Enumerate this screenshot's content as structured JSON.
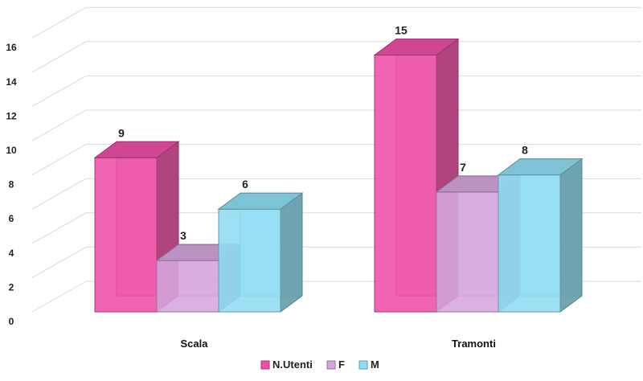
{
  "chart_data": {
    "type": "bar",
    "categories": [
      "Scala",
      "Tramonti"
    ],
    "series": [
      {
        "name": "N.Utenti",
        "values": [
          9,
          15
        ],
        "color": "#ee4fa6"
      },
      {
        "name": "F",
        "values": [
          3,
          7
        ],
        "color": "#d6a6de"
      },
      {
        "name": "M",
        "values": [
          6,
          8
        ],
        "color": "#8fdcf2"
      }
    ],
    "yticks": [
      "0",
      "2",
      "4",
      "6",
      "8",
      "10",
      "12",
      "14",
      "16"
    ],
    "ylim": [
      0,
      16
    ],
    "grid": true,
    "legend_position": "bottom"
  }
}
